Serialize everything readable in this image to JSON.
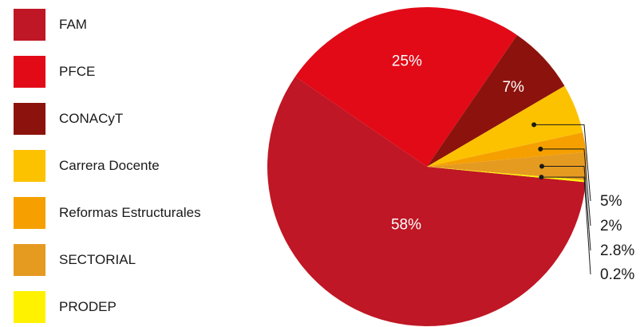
{
  "chart_data": {
    "type": "pie",
    "slices": [
      {
        "label": "FAM",
        "value": 58,
        "display": "58%",
        "color": "#bf1725",
        "label_position": "inside"
      },
      {
        "label": "PFCE",
        "value": 25,
        "display": "25%",
        "color": "#e20a17",
        "label_position": "inside"
      },
      {
        "label": "CONACyT",
        "value": 7,
        "display": "7%",
        "color": "#8c130d",
        "label_position": "inside"
      },
      {
        "label": "Carrera Docente",
        "value": 5,
        "display": "5%",
        "color": "#fcc200",
        "label_position": "outside"
      },
      {
        "label": "Reformas Estructurales",
        "value": 2,
        "display": "2%",
        "color": "#f5a000",
        "label_position": "outside"
      },
      {
        "label": "SECTORIAL",
        "value": 2.8,
        "display": "2.8%",
        "color": "#e59a20",
        "label_position": "outside"
      },
      {
        "label": "PRODEP",
        "value": 0.2,
        "display": "0.2%",
        "color": "#fff200",
        "label_position": "outside"
      }
    ],
    "legend_position": "left"
  }
}
